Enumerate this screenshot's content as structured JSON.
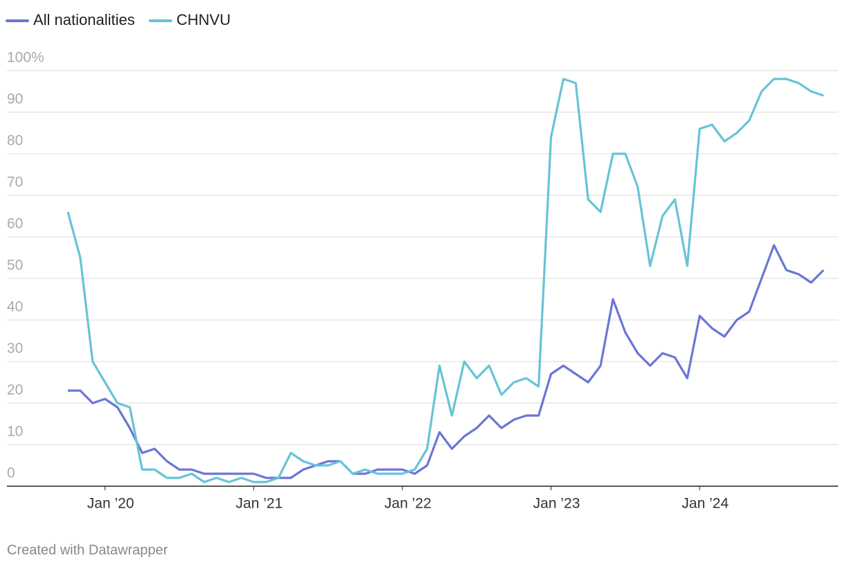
{
  "chart_data": {
    "type": "line",
    "x": [
      "2019-10",
      "2019-11",
      "2019-12",
      "2020-01",
      "2020-02",
      "2020-03",
      "2020-04",
      "2020-05",
      "2020-06",
      "2020-07",
      "2020-08",
      "2020-09",
      "2020-10",
      "2020-11",
      "2020-12",
      "2021-01",
      "2021-02",
      "2021-03",
      "2021-04",
      "2021-05",
      "2021-06",
      "2021-07",
      "2021-08",
      "2021-09",
      "2021-10",
      "2021-11",
      "2021-12",
      "2022-01",
      "2022-02",
      "2022-03",
      "2022-04",
      "2022-05",
      "2022-06",
      "2022-07",
      "2022-08",
      "2022-09",
      "2022-10",
      "2022-11",
      "2022-12",
      "2023-01",
      "2023-02",
      "2023-03",
      "2023-04",
      "2023-05",
      "2023-06",
      "2023-07",
      "2023-08",
      "2023-09",
      "2023-10",
      "2023-11",
      "2023-12",
      "2024-01",
      "2024-02",
      "2024-03",
      "2024-04",
      "2024-05",
      "2024-06",
      "2024-07",
      "2024-08",
      "2024-09",
      "2024-10",
      "2024-11"
    ],
    "series": [
      {
        "name": "All nationalities",
        "color": "#6b75d6",
        "values": [
          23,
          23,
          20,
          21,
          19,
          14,
          8,
          9,
          6,
          4,
          4,
          3,
          3,
          3,
          3,
          3,
          2,
          2,
          2,
          4,
          5,
          6,
          6,
          3,
          3,
          4,
          4,
          4,
          3,
          5,
          13,
          9,
          12,
          14,
          17,
          14,
          16,
          17,
          17,
          27,
          29,
          27,
          25,
          29,
          45,
          37,
          32,
          29,
          32,
          31,
          26,
          41,
          38,
          36,
          40,
          42,
          50,
          58,
          52,
          51,
          49,
          52
        ]
      },
      {
        "name": "CHNVU",
        "color": "#66c4d6",
        "values": [
          66,
          55,
          30,
          25,
          20,
          19,
          4,
          4,
          2,
          2,
          3,
          1,
          2,
          1,
          2,
          1,
          1,
          2,
          8,
          6,
          5,
          5,
          6,
          3,
          4,
          3,
          3,
          3,
          4,
          9,
          29,
          17,
          30,
          26,
          29,
          22,
          25,
          26,
          24,
          84,
          98,
          97,
          69,
          66,
          80,
          80,
          72,
          53,
          65,
          69,
          53,
          86,
          87,
          83,
          85,
          88,
          95,
          98,
          98,
          97,
          95,
          94
        ]
      }
    ],
    "xlim": [
      "2019-10",
      "2024-11"
    ],
    "xticks": [
      {
        "value": "2020-01",
        "label": "Jan ’20"
      },
      {
        "value": "2021-01",
        "label": "Jan ’21"
      },
      {
        "value": "2022-01",
        "label": "Jan ’22"
      },
      {
        "value": "2023-01",
        "label": "Jan ’23"
      },
      {
        "value": "2024-01",
        "label": "Jan ’24"
      }
    ],
    "ylim": [
      0,
      100
    ],
    "yticks": [
      0,
      10,
      20,
      30,
      40,
      50,
      60,
      70,
      80,
      90,
      {
        "value": 100,
        "label": "100%"
      }
    ],
    "grid": true,
    "legend": "top",
    "note": "Created with Datawrapper"
  }
}
